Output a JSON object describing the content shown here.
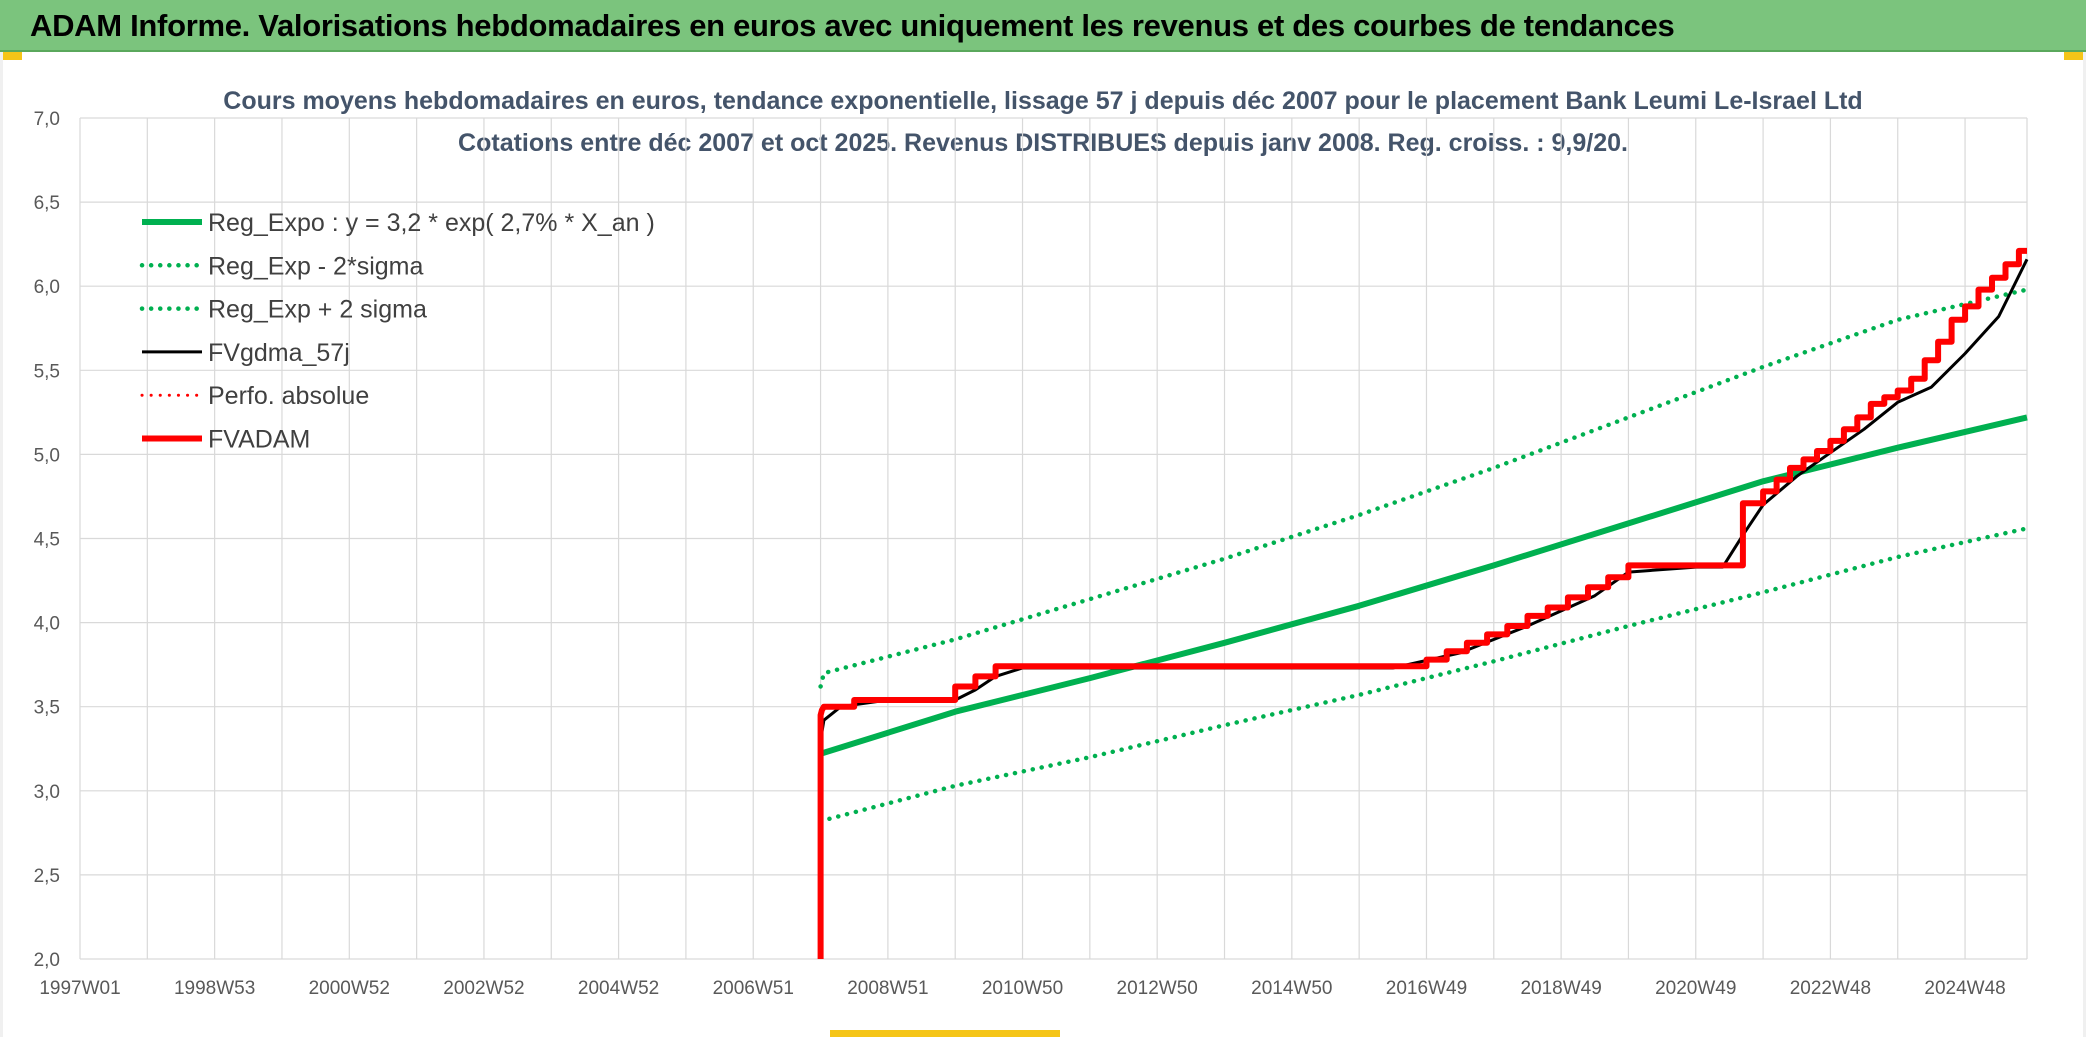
{
  "banner": {
    "title": "ADAM Informe. Valorisations hebdomadaires en euros avec uniquement les revenus et des courbes de tendances"
  },
  "colors": {
    "banner_bg": "#7bc47d",
    "reg_green": "#00b050",
    "fv_black": "#000000",
    "adam_red": "#ff0000",
    "grid": "#d9d9d9",
    "title_text": "#44546a"
  },
  "chart_data": {
    "type": "line",
    "title_line1": "Cours moyens hebdomadaires en euros, tendance exponentielle, lissage 57 j depuis déc 2007 pour le placement Bank Leumi Le-Israel Ltd",
    "title_line2": "Cotations entre déc 2007 et oct 2025. Revenus DISTRIBUES depuis janv 2008. Reg. croiss. : 9,9/20.",
    "xlabel": "",
    "ylabel": "",
    "x_range": [
      1997.0,
      2025.92
    ],
    "ylim": [
      2.0,
      7.0
    ],
    "y_ticks": [
      {
        "value": 2.0,
        "label": "2,0"
      },
      {
        "value": 2.5,
        "label": "2,5"
      },
      {
        "value": 3.0,
        "label": "3,0"
      },
      {
        "value": 3.5,
        "label": "3,5"
      },
      {
        "value": 4.0,
        "label": "4,0"
      },
      {
        "value": 4.5,
        "label": "4,5"
      },
      {
        "value": 5.0,
        "label": "5,0"
      },
      {
        "value": 5.5,
        "label": "5,5"
      },
      {
        "value": 6.0,
        "label": "6,0"
      },
      {
        "value": 6.5,
        "label": "6,5"
      },
      {
        "value": 7.0,
        "label": "7,0"
      }
    ],
    "x_ticks": [
      {
        "value": 1997.0,
        "label": "1997W01"
      },
      {
        "value": 1999.0,
        "label": "1998W53"
      },
      {
        "value": 2001.0,
        "label": "2000W52"
      },
      {
        "value": 2003.0,
        "label": "2002W52"
      },
      {
        "value": 2005.0,
        "label": "2004W52"
      },
      {
        "value": 2007.0,
        "label": "2006W51"
      },
      {
        "value": 2009.0,
        "label": "2008W51"
      },
      {
        "value": 2011.0,
        "label": "2010W50"
      },
      {
        "value": 2013.0,
        "label": "2012W50"
      },
      {
        "value": 2015.0,
        "label": "2014W50"
      },
      {
        "value": 2017.0,
        "label": "2016W49"
      },
      {
        "value": 2019.0,
        "label": "2018W49"
      },
      {
        "value": 2021.0,
        "label": "2020W49"
      },
      {
        "value": 2023.0,
        "label": "2022W48"
      },
      {
        "value": 2025.0,
        "label": "2024W48"
      }
    ],
    "minor_grid_step": 1,
    "grid": true,
    "legend_position": "top-left",
    "series": [
      {
        "name": "Reg_Expo : y = 3,2 * exp( 2,7% *  X_an )",
        "color": "#00b050",
        "style": "solid",
        "width": 6,
        "x": [
          2008.0,
          2010.0,
          2012.0,
          2014.0,
          2016.0,
          2018.0,
          2020.0,
          2022.0,
          2024.0,
          2025.92
        ],
        "y": [
          3.22,
          3.47,
          3.67,
          3.88,
          4.1,
          4.34,
          4.59,
          4.84,
          5.04,
          5.22
        ]
      },
      {
        "name": "Reg_Exp - 2*sigma",
        "color": "#00b050",
        "style": "dotted",
        "width": 4.5,
        "x": [
          2008.0,
          2010.0,
          2012.0,
          2014.0,
          2016.0,
          2018.0,
          2020.0,
          2022.0,
          2024.0,
          2025.92
        ],
        "y": [
          2.82,
          3.03,
          3.2,
          3.39,
          3.57,
          3.77,
          3.98,
          4.18,
          4.39,
          4.56
        ]
      },
      {
        "name": "Reg_Exp + 2 sigma",
        "color": "#00b050",
        "style": "dotted",
        "width": 4.5,
        "x": [
          2008.0,
          2008.05,
          2010.0,
          2012.0,
          2014.0,
          2016.0,
          2018.0,
          2020.0,
          2022.0,
          2024.0,
          2025.92
        ],
        "y": [
          3.62,
          3.7,
          3.9,
          4.14,
          4.38,
          4.64,
          4.92,
          5.22,
          5.52,
          5.8,
          5.98
        ]
      },
      {
        "name": "FVgdma_57j",
        "color": "#000000",
        "style": "solid",
        "width": 3,
        "x": [
          2008.0,
          2008.05,
          2008.3,
          2009.0,
          2010.0,
          2010.3,
          2010.6,
          2011.0,
          2014.0,
          2016.5,
          2017.5,
          2018.5,
          2019.5,
          2020.0,
          2021.0,
          2021.4,
          2021.7,
          2022.0,
          2022.5,
          2023.0,
          2023.5,
          2024.0,
          2024.5,
          2025.0,
          2025.5,
          2025.92
        ],
        "y": [
          3.3,
          3.42,
          3.5,
          3.54,
          3.54,
          3.6,
          3.68,
          3.73,
          3.73,
          3.73,
          3.82,
          3.98,
          4.16,
          4.3,
          4.33,
          4.33,
          4.52,
          4.7,
          4.87,
          5.01,
          5.15,
          5.31,
          5.4,
          5.6,
          5.82,
          6.16
        ]
      },
      {
        "name": "Perfo. absolue",
        "color": "#ff0000",
        "style": "dotted",
        "width": 3,
        "x": [],
        "y": []
      },
      {
        "name": "FVADAM",
        "color": "#ff0000",
        "style": "solid",
        "width": 6,
        "x": [
          2008.0,
          2008.0,
          2008.02,
          2008.05,
          2008.5,
          2008.5,
          2010.0,
          2010.0,
          2010.3,
          2010.3,
          2010.6,
          2010.6,
          2016.6,
          2017.0,
          2017.0,
          2017.3,
          2017.3,
          2017.6,
          2017.6,
          2017.9,
          2017.9,
          2018.2,
          2018.2,
          2018.5,
          2018.5,
          2018.8,
          2018.8,
          2019.1,
          2019.1,
          2019.4,
          2019.4,
          2019.7,
          2019.7,
          2020.0,
          2020.0,
          2020.6,
          2020.6,
          2021.7,
          2021.7,
          2022.0,
          2022.0,
          2022.2,
          2022.2,
          2022.4,
          2022.4,
          2022.6,
          2022.6,
          2022.8,
          2022.8,
          2023.0,
          2023.0,
          2023.2,
          2023.2,
          2023.4,
          2023.4,
          2023.6,
          2023.6,
          2023.8,
          2023.8,
          2024.0,
          2024.0,
          2024.2,
          2024.2,
          2024.4,
          2024.4,
          2024.6,
          2024.6,
          2024.8,
          2024.8,
          2025.0,
          2025.0,
          2025.2,
          2025.2,
          2025.4,
          2025.4,
          2025.6,
          2025.6,
          2025.8,
          2025.8,
          2025.92
        ],
        "y": [
          2.0,
          3.45,
          3.48,
          3.5,
          3.5,
          3.54,
          3.54,
          3.62,
          3.62,
          3.68,
          3.68,
          3.74,
          3.74,
          3.74,
          3.78,
          3.78,
          3.83,
          3.83,
          3.88,
          3.88,
          3.93,
          3.93,
          3.98,
          3.98,
          4.04,
          4.04,
          4.09,
          4.09,
          4.15,
          4.15,
          4.21,
          4.21,
          4.27,
          4.27,
          4.34,
          4.34,
          4.34,
          4.34,
          4.71,
          4.71,
          4.78,
          4.78,
          4.85,
          4.85,
          4.92,
          4.92,
          4.97,
          4.97,
          5.02,
          5.02,
          5.08,
          5.08,
          5.15,
          5.15,
          5.22,
          5.22,
          5.3,
          5.3,
          5.34,
          5.34,
          5.38,
          5.38,
          5.45,
          5.45,
          5.56,
          5.56,
          5.67,
          5.67,
          5.8,
          5.8,
          5.88,
          5.88,
          5.98,
          5.98,
          6.05,
          6.05,
          6.13,
          6.13,
          6.21,
          6.21
        ]
      }
    ]
  }
}
